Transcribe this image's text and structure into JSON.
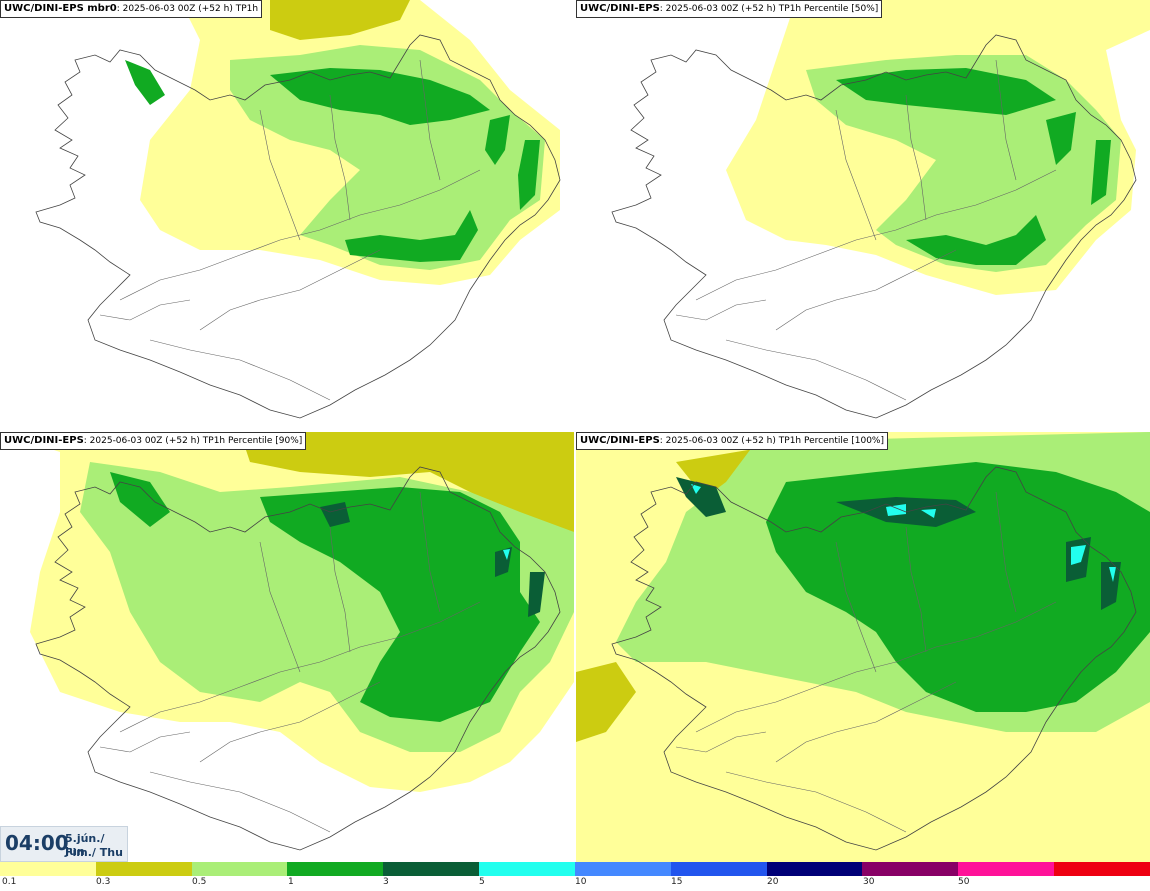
{
  "panels": [
    {
      "model": "UWC/DINI-EPS mbr0",
      "run": ": 2025-06-03 00Z (+52 h)",
      "field": "TP1h"
    },
    {
      "model": "UWC/DINI-EPS",
      "run": ": 2025-06-03 00Z (+52 h)",
      "field": "TP1h Percentile [50%]"
    },
    {
      "model": "UWC/DINI-EPS",
      "run": ": 2025-06-03 00Z (+52 h)",
      "field": "TP1h Percentile [90%]"
    },
    {
      "model": "UWC/DINI-EPS",
      "run": ": 2025-06-03 00Z (+52 h)",
      "field": "TP1h Percentile [100%]"
    }
  ],
  "valid_time": {
    "time": "04:00",
    "date_line1": "5.jún./ Jun",
    "date_line2": "Fim./ Thu"
  },
  "legend": {
    "colors": [
      "#ffff99",
      "#cccc11",
      "#aaee77",
      "#11aa22",
      "#0a5e36",
      "#22ffee",
      "#4488ff",
      "#2255ee",
      "#000077",
      "#880066",
      "#ff1199",
      "#ee0011"
    ],
    "ticks": [
      "0.1",
      "0.3",
      "0.5",
      "1",
      "3",
      "5",
      "10",
      "15",
      "20",
      "30",
      "50"
    ]
  }
}
